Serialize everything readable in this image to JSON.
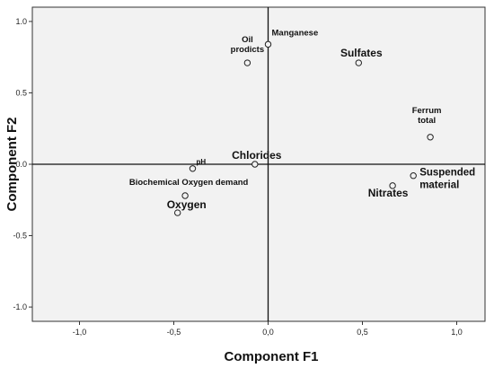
{
  "chart_data": {
    "type": "scatter",
    "title": "",
    "xlabel": "Component F1",
    "ylabel": "Component F2",
    "xlim": [
      -1.25,
      1.15
    ],
    "ylim": [
      -1.1,
      1.1
    ],
    "xticks": [
      "-1,0",
      "-0,5",
      "0,0",
      "0,5",
      "1,0"
    ],
    "xtick_values": [
      -1.0,
      -0.5,
      0.0,
      0.5,
      1.0
    ],
    "yticks": [
      "1.0",
      "0.5",
      "0.0",
      "-0.5",
      "-1.0"
    ],
    "ytick_values": [
      1.0,
      0.5,
      0.0,
      -0.5,
      -1.0
    ],
    "grid": false,
    "reference_lines": {
      "x": 0,
      "y": 0
    },
    "plot_background": "#f2f2f2",
    "points": [
      {
        "label": "Manganese",
        "label_lines": [
          "Manganese"
        ],
        "x": 0.0,
        "y": 0.84
      },
      {
        "label": "Oil prodicts",
        "label_lines": [
          "Oil",
          "prodicts"
        ],
        "x": -0.11,
        "y": 0.71
      },
      {
        "label": "Sulfates",
        "label_lines": [
          "Sulfates"
        ],
        "x": 0.48,
        "y": 0.71
      },
      {
        "label": "Ferrum total",
        "label_lines": [
          "Ferrum",
          "total"
        ],
        "x": 0.86,
        "y": 0.19
      },
      {
        "label": "Chlorides",
        "label_lines": [
          "Chlorides"
        ],
        "x": -0.07,
        "y": 0.0
      },
      {
        "label": "pH",
        "label_lines": [
          "pH"
        ],
        "x": -0.4,
        "y": -0.03
      },
      {
        "label": "Suspended material",
        "label_lines": [
          "Suspended",
          "material"
        ],
        "x": 0.77,
        "y": -0.08
      },
      {
        "label": "Nitrates",
        "label_lines": [
          "Nitrates"
        ],
        "x": 0.66,
        "y": -0.15
      },
      {
        "label": "Biochemical Oxygen demand",
        "label_lines": [
          "Biochemical Oxygen demand"
        ],
        "x": -0.44,
        "y": -0.22
      },
      {
        "label": "Oxygen",
        "label_lines": [
          "Oxygen"
        ],
        "x": -0.48,
        "y": -0.34
      }
    ]
  }
}
